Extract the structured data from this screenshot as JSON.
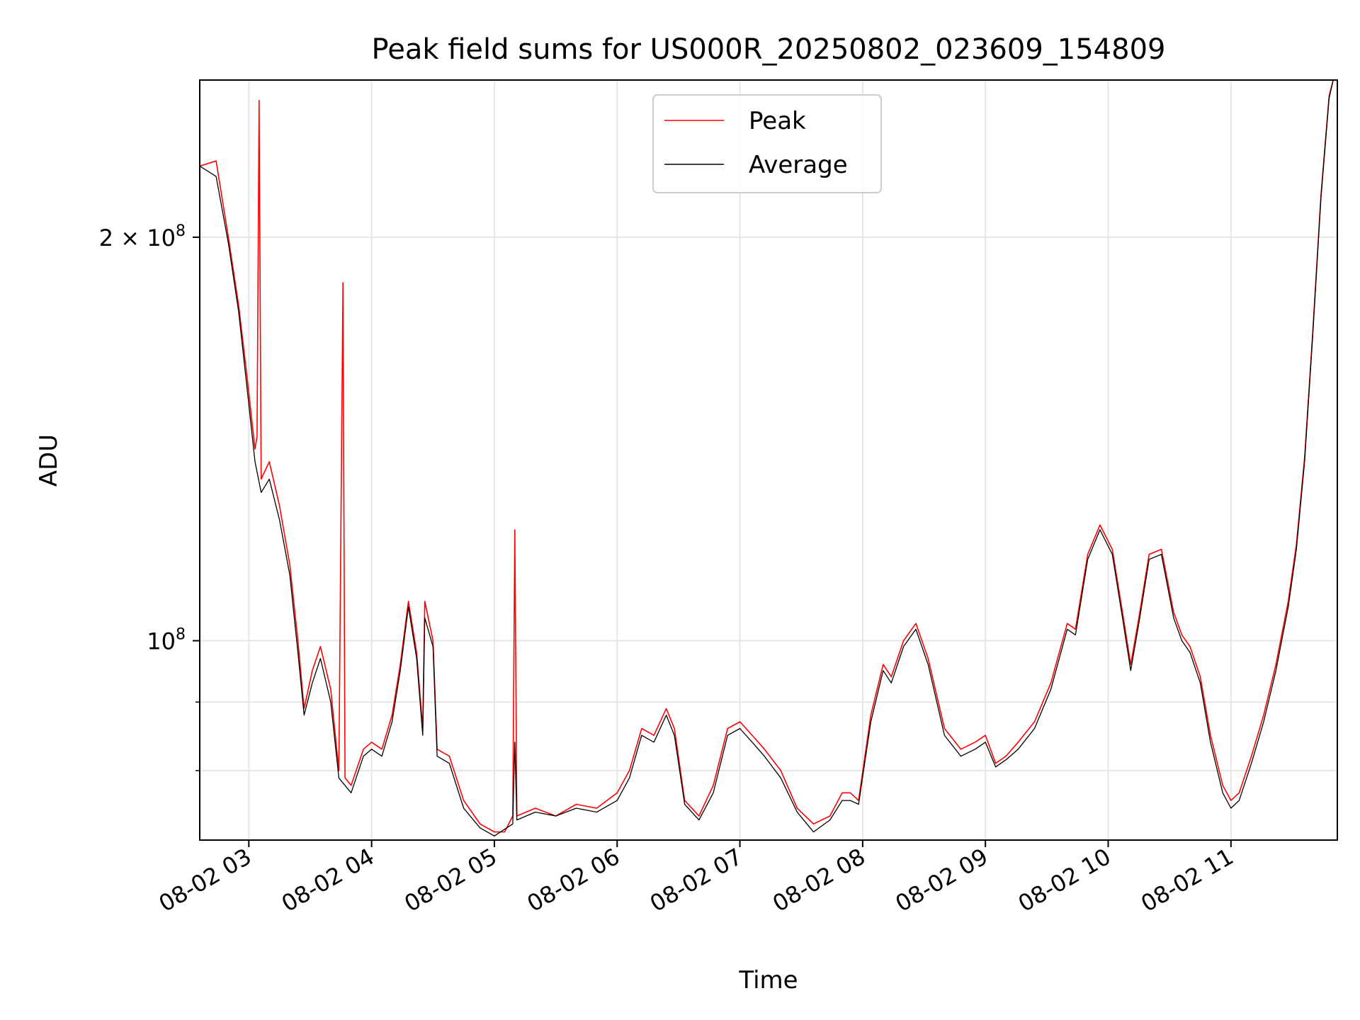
{
  "chart_data": {
    "type": "line",
    "title": "Peak field sums for US000R_20250802_023609_154809",
    "xlabel": "Time",
    "ylabel": "ADU",
    "y_scale": "log",
    "ylim": [
      71000000,
      262000000
    ],
    "xlim": [
      "2025-08-02 02:36",
      "2025-08-02 11:52"
    ],
    "x_ticks": [
      "08-02 03",
      "08-02 04",
      "08-02 05",
      "08-02 06",
      "08-02 07",
      "08-02 08",
      "08-02 09",
      "08-02 10",
      "08-02 11"
    ],
    "y_major_ticks": [
      {
        "value": 100000000,
        "label_base": "10",
        "label_exp": "8"
      },
      {
        "value": 200000000,
        "label_base": "2 × 10",
        "label_exp": "8"
      }
    ],
    "y_minor_ticks": [
      80000000,
      90000000
    ],
    "grid": true,
    "legend": "upper-center",
    "series": [
      {
        "name": "Peak",
        "color": "#ff0000",
        "points": [
          [
            "2025-08-02 02:36",
            226000000
          ],
          [
            "2025-08-02 02:44",
            228000000
          ],
          [
            "2025-08-02 02:50",
            200000000
          ],
          [
            "2025-08-02 02:55",
            178000000
          ],
          [
            "2025-08-02 02:59",
            158000000
          ],
          [
            "2025-08-02 03:03",
            139000000
          ],
          [
            "2025-08-02 03:04",
            142000000
          ],
          [
            "2025-08-02 03:05",
            253000000
          ],
          [
            "2025-08-02 03:06",
            132000000
          ],
          [
            "2025-08-02 03:10",
            136000000
          ],
          [
            "2025-08-02 03:15",
            126000000
          ],
          [
            "2025-08-02 03:20",
            114000000
          ],
          [
            "2025-08-02 03:24",
            100000000
          ],
          [
            "2025-08-02 03:27",
            89000000
          ],
          [
            "2025-08-02 03:31",
            95000000
          ],
          [
            "2025-08-02 03:35",
            99000000
          ],
          [
            "2025-08-02 03:40",
            92000000
          ],
          [
            "2025-08-02 03:44",
            80000000
          ],
          [
            "2025-08-02 03:46",
            185000000
          ],
          [
            "2025-08-02 03:47",
            79000000
          ],
          [
            "2025-08-02 03:50",
            78000000
          ],
          [
            "2025-08-02 03:56",
            83000000
          ],
          [
            "2025-08-02 04:00",
            84000000
          ],
          [
            "2025-08-02 04:05",
            83000000
          ],
          [
            "2025-08-02 04:10",
            88000000
          ],
          [
            "2025-08-02 04:14",
            96000000
          ],
          [
            "2025-08-02 04:18",
            107000000
          ],
          [
            "2025-08-02 04:22",
            98000000
          ],
          [
            "2025-08-02 04:25",
            86000000
          ],
          [
            "2025-08-02 04:26",
            107000000
          ],
          [
            "2025-08-02 04:30",
            100000000
          ],
          [
            "2025-08-02 04:32",
            83000000
          ],
          [
            "2025-08-02 04:38",
            82000000
          ],
          [
            "2025-08-02 04:45",
            76000000
          ],
          [
            "2025-08-02 04:53",
            73000000
          ],
          [
            "2025-08-02 05:00",
            72000000
          ],
          [
            "2025-08-02 05:05",
            72000000
          ],
          [
            "2025-08-02 05:09",
            74000000
          ],
          [
            "2025-08-02 05:10",
            121000000
          ],
          [
            "2025-08-02 05:11",
            74000000
          ],
          [
            "2025-08-02 05:20",
            75000000
          ],
          [
            "2025-08-02 05:30",
            74000000
          ],
          [
            "2025-08-02 05:40",
            75500000
          ],
          [
            "2025-08-02 05:50",
            75000000
          ],
          [
            "2025-08-02 06:00",
            77000000
          ],
          [
            "2025-08-02 06:06",
            80000000
          ],
          [
            "2025-08-02 06:12",
            86000000
          ],
          [
            "2025-08-02 06:18",
            85000000
          ],
          [
            "2025-08-02 06:24",
            89000000
          ],
          [
            "2025-08-02 06:28",
            86000000
          ],
          [
            "2025-08-02 06:33",
            76000000
          ],
          [
            "2025-08-02 06:40",
            74000000
          ],
          [
            "2025-08-02 06:47",
            78000000
          ],
          [
            "2025-08-02 06:54",
            86000000
          ],
          [
            "2025-08-02 07:00",
            87000000
          ],
          [
            "2025-08-02 07:06",
            85000000
          ],
          [
            "2025-08-02 07:12",
            83000000
          ],
          [
            "2025-08-02 07:20",
            80000000
          ],
          [
            "2025-08-02 07:28",
            75000000
          ],
          [
            "2025-08-02 07:36",
            73000000
          ],
          [
            "2025-08-02 07:44",
            74000000
          ],
          [
            "2025-08-02 07:50",
            77000000
          ],
          [
            "2025-08-02 07:54",
            77000000
          ],
          [
            "2025-08-02 07:58",
            76000000
          ],
          [
            "2025-08-02 08:04",
            88000000
          ],
          [
            "2025-08-02 08:10",
            96000000
          ],
          [
            "2025-08-02 08:14",
            94000000
          ],
          [
            "2025-08-02 08:20",
            100000000
          ],
          [
            "2025-08-02 08:26",
            103000000
          ],
          [
            "2025-08-02 08:32",
            97000000
          ],
          [
            "2025-08-02 08:40",
            86000000
          ],
          [
            "2025-08-02 08:48",
            83000000
          ],
          [
            "2025-08-02 08:55",
            84000000
          ],
          [
            "2025-08-02 09:00",
            85000000
          ],
          [
            "2025-08-02 09:05",
            81000000
          ],
          [
            "2025-08-02 09:10",
            82000000
          ],
          [
            "2025-08-02 09:16",
            84000000
          ],
          [
            "2025-08-02 09:24",
            87000000
          ],
          [
            "2025-08-02 09:32",
            93000000
          ],
          [
            "2025-08-02 09:40",
            103000000
          ],
          [
            "2025-08-02 09:44",
            102000000
          ],
          [
            "2025-08-02 09:50",
            116000000
          ],
          [
            "2025-08-02 09:56",
            122000000
          ],
          [
            "2025-08-02 10:02",
            117000000
          ],
          [
            "2025-08-02 10:07",
            105000000
          ],
          [
            "2025-08-02 10:11",
            96000000
          ],
          [
            "2025-08-02 10:15",
            104000000
          ],
          [
            "2025-08-02 10:20",
            116000000
          ],
          [
            "2025-08-02 10:26",
            117000000
          ],
          [
            "2025-08-02 10:32",
            105000000
          ],
          [
            "2025-08-02 10:36",
            101000000
          ],
          [
            "2025-08-02 10:40",
            99000000
          ],
          [
            "2025-08-02 10:45",
            94000000
          ],
          [
            "2025-08-02 10:50",
            85000000
          ],
          [
            "2025-08-02 10:56",
            78000000
          ],
          [
            "2025-08-02 11:00",
            76000000
          ],
          [
            "2025-08-02 11:04",
            77000000
          ],
          [
            "2025-08-02 11:10",
            82000000
          ],
          [
            "2025-08-02 11:16",
            88000000
          ],
          [
            "2025-08-02 11:22",
            96000000
          ],
          [
            "2025-08-02 11:28",
            107000000
          ],
          [
            "2025-08-02 11:32",
            118000000
          ],
          [
            "2025-08-02 11:36",
            137000000
          ],
          [
            "2025-08-02 11:40",
            170000000
          ],
          [
            "2025-08-02 11:44",
            215000000
          ],
          [
            "2025-08-02 11:48",
            255000000
          ],
          [
            "2025-08-02 11:50",
            262000000
          ],
          [
            "2025-08-02 11:52",
            262000000
          ]
        ]
      },
      {
        "name": "Average",
        "color": "#000000",
        "points": [
          [
            "2025-08-02 02:36",
            226000000
          ],
          [
            "2025-08-02 02:44",
            222000000
          ],
          [
            "2025-08-02 02:50",
            198000000
          ],
          [
            "2025-08-02 02:55",
            176000000
          ],
          [
            "2025-08-02 02:59",
            155000000
          ],
          [
            "2025-08-02 03:03",
            136000000
          ],
          [
            "2025-08-02 03:06",
            129000000
          ],
          [
            "2025-08-02 03:10",
            132000000
          ],
          [
            "2025-08-02 03:15",
            123000000
          ],
          [
            "2025-08-02 03:20",
            112000000
          ],
          [
            "2025-08-02 03:24",
            98000000
          ],
          [
            "2025-08-02 03:27",
            88000000
          ],
          [
            "2025-08-02 03:31",
            93000000
          ],
          [
            "2025-08-02 03:35",
            97000000
          ],
          [
            "2025-08-02 03:40",
            90000000
          ],
          [
            "2025-08-02 03:44",
            79000000
          ],
          [
            "2025-08-02 03:50",
            77000000
          ],
          [
            "2025-08-02 03:56",
            82000000
          ],
          [
            "2025-08-02 04:00",
            83000000
          ],
          [
            "2025-08-02 04:05",
            82000000
          ],
          [
            "2025-08-02 04:10",
            87000000
          ],
          [
            "2025-08-02 04:14",
            95000000
          ],
          [
            "2025-08-02 04:18",
            106000000
          ],
          [
            "2025-08-02 04:22",
            97000000
          ],
          [
            "2025-08-02 04:25",
            85000000
          ],
          [
            "2025-08-02 04:26",
            104000000
          ],
          [
            "2025-08-02 04:30",
            99000000
          ],
          [
            "2025-08-02 04:32",
            82000000
          ],
          [
            "2025-08-02 04:38",
            81000000
          ],
          [
            "2025-08-02 04:45",
            75000000
          ],
          [
            "2025-08-02 04:53",
            72500000
          ],
          [
            "2025-08-02 05:00",
            71500000
          ],
          [
            "2025-08-02 05:09",
            73000000
          ],
          [
            "2025-08-02 05:10",
            84000000
          ],
          [
            "2025-08-02 05:11",
            73500000
          ],
          [
            "2025-08-02 05:20",
            74500000
          ],
          [
            "2025-08-02 05:30",
            74000000
          ],
          [
            "2025-08-02 05:40",
            75000000
          ],
          [
            "2025-08-02 05:50",
            74500000
          ],
          [
            "2025-08-02 06:00",
            76000000
          ],
          [
            "2025-08-02 06:06",
            79000000
          ],
          [
            "2025-08-02 06:12",
            85000000
          ],
          [
            "2025-08-02 06:18",
            84000000
          ],
          [
            "2025-08-02 06:24",
            88000000
          ],
          [
            "2025-08-02 06:28",
            85000000
          ],
          [
            "2025-08-02 06:33",
            75500000
          ],
          [
            "2025-08-02 06:40",
            73500000
          ],
          [
            "2025-08-02 06:47",
            77000000
          ],
          [
            "2025-08-02 06:54",
            85000000
          ],
          [
            "2025-08-02 07:00",
            86000000
          ],
          [
            "2025-08-02 07:06",
            84000000
          ],
          [
            "2025-08-02 07:12",
            82000000
          ],
          [
            "2025-08-02 07:20",
            79000000
          ],
          [
            "2025-08-02 07:28",
            74500000
          ],
          [
            "2025-08-02 07:36",
            72000000
          ],
          [
            "2025-08-02 07:44",
            73500000
          ],
          [
            "2025-08-02 07:50",
            76000000
          ],
          [
            "2025-08-02 07:54",
            76000000
          ],
          [
            "2025-08-02 07:58",
            75500000
          ],
          [
            "2025-08-02 08:04",
            87000000
          ],
          [
            "2025-08-02 08:10",
            95000000
          ],
          [
            "2025-08-02 08:14",
            93000000
          ],
          [
            "2025-08-02 08:20",
            99000000
          ],
          [
            "2025-08-02 08:26",
            102000000
          ],
          [
            "2025-08-02 08:32",
            96000000
          ],
          [
            "2025-08-02 08:40",
            85000000
          ],
          [
            "2025-08-02 08:48",
            82000000
          ],
          [
            "2025-08-02 08:55",
            83000000
          ],
          [
            "2025-08-02 09:00",
            84000000
          ],
          [
            "2025-08-02 09:05",
            80500000
          ],
          [
            "2025-08-02 09:10",
            81500000
          ],
          [
            "2025-08-02 09:16",
            83000000
          ],
          [
            "2025-08-02 09:24",
            86000000
          ],
          [
            "2025-08-02 09:32",
            92000000
          ],
          [
            "2025-08-02 09:40",
            102000000
          ],
          [
            "2025-08-02 09:44",
            101000000
          ],
          [
            "2025-08-02 09:50",
            115000000
          ],
          [
            "2025-08-02 09:56",
            121000000
          ],
          [
            "2025-08-02 10:02",
            116000000
          ],
          [
            "2025-08-02 10:07",
            104000000
          ],
          [
            "2025-08-02 10:11",
            95000000
          ],
          [
            "2025-08-02 10:15",
            103000000
          ],
          [
            "2025-08-02 10:20",
            115000000
          ],
          [
            "2025-08-02 10:26",
            116000000
          ],
          [
            "2025-08-02 10:32",
            104000000
          ],
          [
            "2025-08-02 10:36",
            100000000
          ],
          [
            "2025-08-02 10:40",
            98000000
          ],
          [
            "2025-08-02 10:45",
            93000000
          ],
          [
            "2025-08-02 10:50",
            84000000
          ],
          [
            "2025-08-02 10:56",
            77000000
          ],
          [
            "2025-08-02 11:00",
            75000000
          ],
          [
            "2025-08-02 11:04",
            76000000
          ],
          [
            "2025-08-02 11:10",
            81000000
          ],
          [
            "2025-08-02 11:16",
            87000000
          ],
          [
            "2025-08-02 11:22",
            95000000
          ],
          [
            "2025-08-02 11:28",
            106000000
          ],
          [
            "2025-08-02 11:32",
            117000000
          ],
          [
            "2025-08-02 11:36",
            136000000
          ],
          [
            "2025-08-02 11:40",
            169000000
          ],
          [
            "2025-08-02 11:44",
            214000000
          ],
          [
            "2025-08-02 11:48",
            254000000
          ],
          [
            "2025-08-02 11:50",
            262000000
          ],
          [
            "2025-08-02 11:52",
            262000000
          ]
        ]
      }
    ]
  }
}
